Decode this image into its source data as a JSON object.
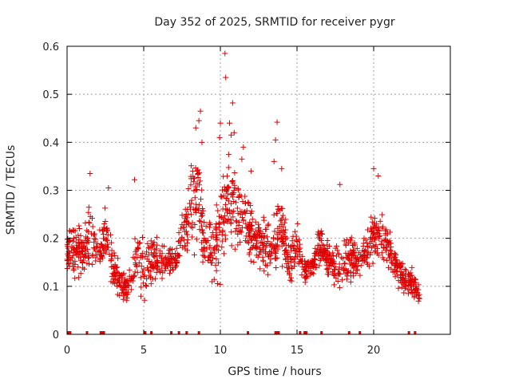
{
  "chart_data": {
    "type": "scatter",
    "title": "Day 352 of 2025, SRMTID for receiver pygr",
    "xlabel": "GPS time / hours",
    "ylabel": "SRMTID / TECUs",
    "xlim": [
      0,
      25
    ],
    "ylim": [
      0,
      0.6
    ],
    "x_ticks": [
      0,
      5,
      10,
      15,
      20
    ],
    "x_tick_labels": [
      "0",
      "5",
      "10",
      "15",
      "20"
    ],
    "y_ticks": [
      0,
      0.1,
      0.2,
      0.3,
      0.4,
      0.5,
      0.6
    ],
    "y_tick_labels": [
      "0",
      "0.1",
      "0.2",
      "0.3",
      "0.4",
      "0.5",
      "0.6"
    ],
    "grid": true,
    "marker": "+",
    "color": "#e00000",
    "envelope": [
      [
        0.0,
        0.12,
        0.22
      ],
      [
        0.5,
        0.1,
        0.24
      ],
      [
        1.0,
        0.12,
        0.22
      ],
      [
        1.5,
        0.13,
        0.3
      ],
      [
        2.0,
        0.12,
        0.22
      ],
      [
        2.5,
        0.15,
        0.27
      ],
      [
        3.0,
        0.1,
        0.18
      ],
      [
        3.5,
        0.07,
        0.14
      ],
      [
        4.0,
        0.06,
        0.13
      ],
      [
        4.5,
        0.1,
        0.25
      ],
      [
        5.0,
        0.06,
        0.2
      ],
      [
        5.5,
        0.1,
        0.21
      ],
      [
        6.0,
        0.11,
        0.2
      ],
      [
        6.5,
        0.12,
        0.19
      ],
      [
        7.0,
        0.11,
        0.18
      ],
      [
        7.5,
        0.15,
        0.25
      ],
      [
        8.0,
        0.17,
        0.35
      ],
      [
        8.5,
        0.18,
        0.42
      ],
      [
        9.0,
        0.12,
        0.25
      ],
      [
        9.5,
        0.1,
        0.25
      ],
      [
        10.0,
        0.11,
        0.34
      ],
      [
        10.5,
        0.15,
        0.38
      ],
      [
        11.0,
        0.16,
        0.36
      ],
      [
        11.5,
        0.18,
        0.3
      ],
      [
        12.0,
        0.15,
        0.27
      ],
      [
        12.5,
        0.13,
        0.25
      ],
      [
        13.0,
        0.12,
        0.24
      ],
      [
        13.5,
        0.13,
        0.24
      ],
      [
        14.0,
        0.14,
        0.3
      ],
      [
        14.5,
        0.09,
        0.19
      ],
      [
        15.0,
        0.14,
        0.24
      ],
      [
        15.5,
        0.1,
        0.16
      ],
      [
        16.0,
        0.11,
        0.17
      ],
      [
        16.5,
        0.13,
        0.24
      ],
      [
        17.0,
        0.11,
        0.2
      ],
      [
        17.5,
        0.1,
        0.19
      ],
      [
        18.0,
        0.09,
        0.19
      ],
      [
        18.5,
        0.11,
        0.22
      ],
      [
        19.0,
        0.11,
        0.18
      ],
      [
        19.5,
        0.13,
        0.21
      ],
      [
        20.0,
        0.15,
        0.28
      ],
      [
        20.5,
        0.16,
        0.25
      ],
      [
        21.0,
        0.13,
        0.22
      ],
      [
        21.5,
        0.1,
        0.18
      ],
      [
        22.0,
        0.07,
        0.15
      ],
      [
        22.5,
        0.08,
        0.14
      ],
      [
        23.0,
        0.05,
        0.1
      ]
    ],
    "spikes": [
      [
        10.3,
        0.585
      ],
      [
        10.35,
        0.535
      ],
      [
        10.8,
        0.482
      ],
      [
        8.7,
        0.465
      ],
      [
        8.6,
        0.445
      ],
      [
        10.0,
        0.44
      ],
      [
        10.6,
        0.44
      ],
      [
        13.7,
        0.442
      ],
      [
        8.4,
        0.43
      ],
      [
        10.9,
        0.42
      ],
      [
        10.7,
        0.415
      ],
      [
        13.6,
        0.405
      ],
      [
        9.95,
        0.41
      ],
      [
        8.8,
        0.4
      ],
      [
        11.5,
        0.39
      ],
      [
        11.4,
        0.365
      ],
      [
        13.5,
        0.36
      ],
      [
        1.5,
        0.335
      ],
      [
        20.0,
        0.345
      ],
      [
        20.3,
        0.33
      ],
      [
        14.0,
        0.345
      ],
      [
        4.4,
        0.322
      ],
      [
        12.0,
        0.34
      ],
      [
        17.8,
        0.312
      ],
      [
        2.7,
        0.305
      ]
    ],
    "zero_points": [
      0.1,
      0.2,
      1.3,
      2.2,
      2.3,
      2.4,
      5.1,
      5.5,
      6.8,
      7.3,
      7.8,
      8.6,
      11.8,
      13.6,
      13.7,
      13.8,
      15.2,
      15.5,
      15.6,
      16.6,
      18.4,
      19.1,
      22.3,
      22.7
    ]
  }
}
